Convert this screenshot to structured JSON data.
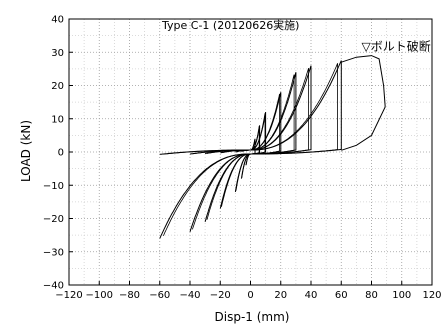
{
  "chart_data": {
    "type": "line",
    "title": "Type  C-1 (20120626実施)",
    "xlabel": "Disp-1 (mm)",
    "ylabel": "LOAD (kN)",
    "xlim": [
      -120,
      120
    ],
    "ylim": [
      -40,
      40
    ],
    "x_ticks": [
      -120,
      -100,
      -80,
      -60,
      -40,
      -20,
      0,
      20,
      40,
      60,
      80,
      100,
      120
    ],
    "y_ticks": [
      -40,
      -30,
      -20,
      -10,
      0,
      10,
      20,
      30,
      40
    ],
    "grid": "dotted",
    "annotation": {
      "text": "▽ボルト破断",
      "x": 80,
      "y": 29
    },
    "line_color": "#000000",
    "cycles": [
      {
        "amplitude": 3,
        "peak_pos": 4,
        "peak_neg": -4
      },
      {
        "amplitude": 6,
        "peak_pos": 8,
        "peak_neg": -8
      },
      {
        "amplitude": 10,
        "peak_pos": 12,
        "peak_neg": -12
      },
      {
        "amplitude": 20,
        "peak_pos": 18,
        "peak_neg": -17
      },
      {
        "amplitude": 30,
        "peak_pos": 24,
        "peak_neg": -21
      },
      {
        "amplitude": 40,
        "peak_pos": 26,
        "peak_neg": -24
      },
      {
        "amplitude": 60,
        "peak_pos": 27.5,
        "peak_neg": -26
      }
    ],
    "failure_curve": {
      "x": [
        60,
        70,
        80,
        85,
        88,
        89,
        89,
        80,
        70,
        60
      ],
      "y": [
        27,
        28.5,
        29,
        28,
        20,
        14,
        13.5,
        5,
        2,
        0.5
      ]
    }
  }
}
